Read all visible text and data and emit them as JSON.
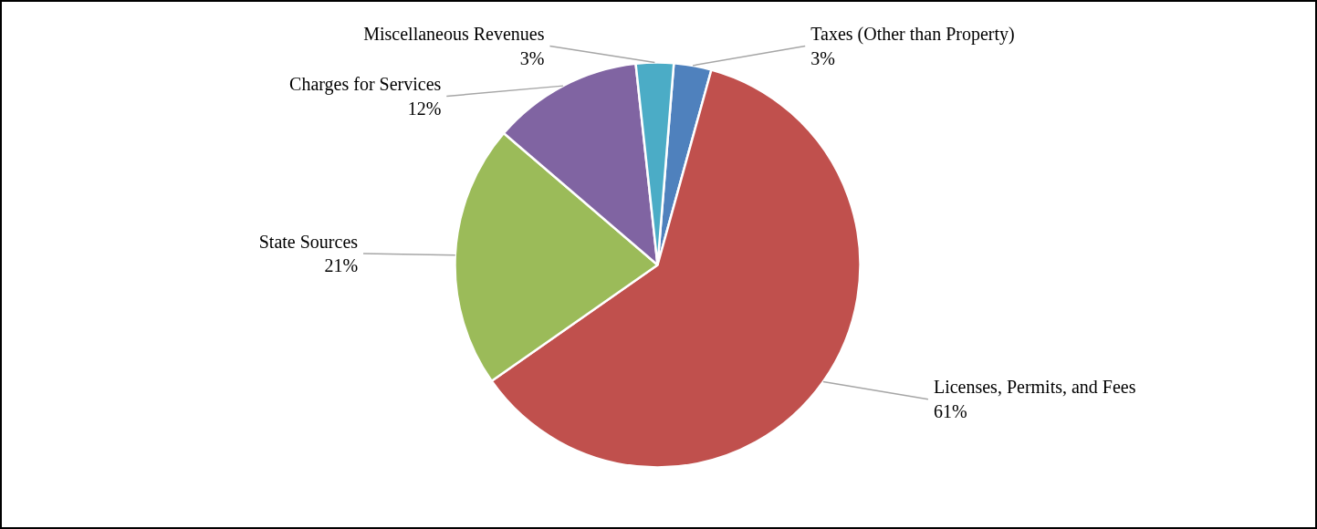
{
  "chart_data": {
    "type": "pie",
    "categories": [
      "Taxes (Other than Property)",
      "Licenses, Permits, and Fees",
      "State Sources",
      "Charges for Services",
      "Miscellaneous Revenues"
    ],
    "values": [
      3,
      61,
      21,
      12,
      3
    ],
    "colors": [
      "#4f81bd",
      "#c0504d",
      "#9bbb59",
      "#8064a2",
      "#4bacc6"
    ],
    "value_labels": [
      "3%",
      "61%",
      "21%",
      "12%",
      "3%"
    ]
  }
}
